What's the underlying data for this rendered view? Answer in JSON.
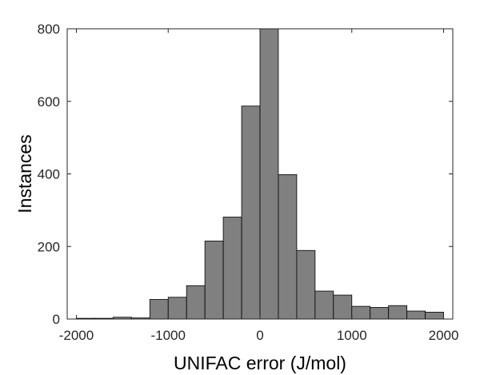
{
  "chart_data": {
    "type": "bar",
    "title": "",
    "xlabel": "UNIFAC error (J/mol)",
    "ylabel": "Instances",
    "xlim": [
      -2100,
      2100
    ],
    "ylim": [
      0,
      800
    ],
    "xticks": [
      -2000,
      -1000,
      0,
      1000,
      2000
    ],
    "yticks": [
      0,
      200,
      400,
      600,
      800
    ],
    "xtick_labels": [
      "-2000",
      "-1000",
      "0",
      "1000",
      "2000"
    ],
    "ytick_labels": [
      "0",
      "200",
      "400",
      "600",
      "800"
    ],
    "grid": false,
    "bar_color": "#808080",
    "bins": [
      {
        "x0": -2000,
        "x1": -1800,
        "value": 2
      },
      {
        "x0": -1800,
        "x1": -1600,
        "value": 2
      },
      {
        "x0": -1600,
        "x1": -1400,
        "value": 5
      },
      {
        "x0": -1400,
        "x1": -1200,
        "value": 3
      },
      {
        "x0": -1200,
        "x1": -1000,
        "value": 54
      },
      {
        "x0": -1000,
        "x1": -800,
        "value": 60
      },
      {
        "x0": -800,
        "x1": -600,
        "value": 92
      },
      {
        "x0": -600,
        "x1": -400,
        "value": 215
      },
      {
        "x0": -400,
        "x1": -200,
        "value": 281
      },
      {
        "x0": -200,
        "x1": 0,
        "value": 587
      },
      {
        "x0": 0,
        "x1": 200,
        "value": 800
      },
      {
        "x0": 200,
        "x1": 400,
        "value": 398
      },
      {
        "x0": 400,
        "x1": 600,
        "value": 189
      },
      {
        "x0": 600,
        "x1": 800,
        "value": 77
      },
      {
        "x0": 800,
        "x1": 1000,
        "value": 66
      },
      {
        "x0": 1000,
        "x1": 1200,
        "value": 35
      },
      {
        "x0": 1200,
        "x1": 1400,
        "value": 32
      },
      {
        "x0": 1400,
        "x1": 1600,
        "value": 37
      },
      {
        "x0": 1600,
        "x1": 1800,
        "value": 22
      },
      {
        "x0": 1800,
        "x1": 2000,
        "value": 19
      }
    ]
  }
}
